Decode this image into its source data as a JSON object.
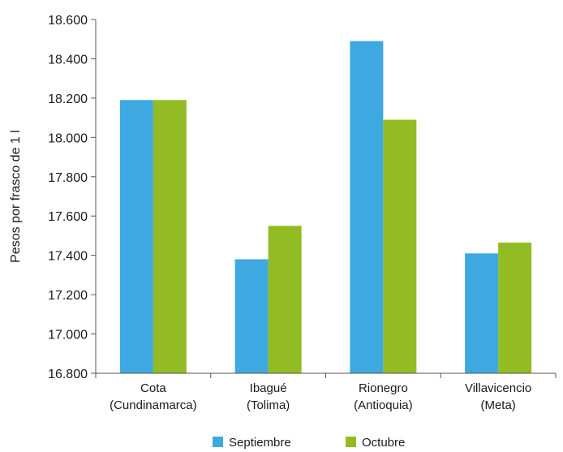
{
  "chart_data": {
    "type": "bar",
    "title": "",
    "xlabel": "",
    "ylabel": "Pesos por frasco de 1 l",
    "ylim": [
      16800,
      18600
    ],
    "ytick_step": 200,
    "ytick_labels": [
      "16.800",
      "17.000",
      "17.200",
      "17.400",
      "17.600",
      "17.800",
      "18.000",
      "18.200",
      "18.400",
      "18.600"
    ],
    "grid": false,
    "legend_position": "bottom",
    "categories": [
      [
        "Cota",
        "(Cundinamarca)"
      ],
      [
        "Ibagué",
        "(Tolima)"
      ],
      [
        "Rionegro",
        "(Antioquia)"
      ],
      [
        "Villavicencio",
        "(Meta)"
      ]
    ],
    "series": [
      {
        "name": "Septiembre",
        "color": "#3ea8e0",
        "values": [
          18190,
          17380,
          18490,
          17410
        ]
      },
      {
        "name": "Octubre",
        "color": "#92bb24",
        "values": [
          18190,
          17550,
          18090,
          17465
        ]
      }
    ]
  }
}
